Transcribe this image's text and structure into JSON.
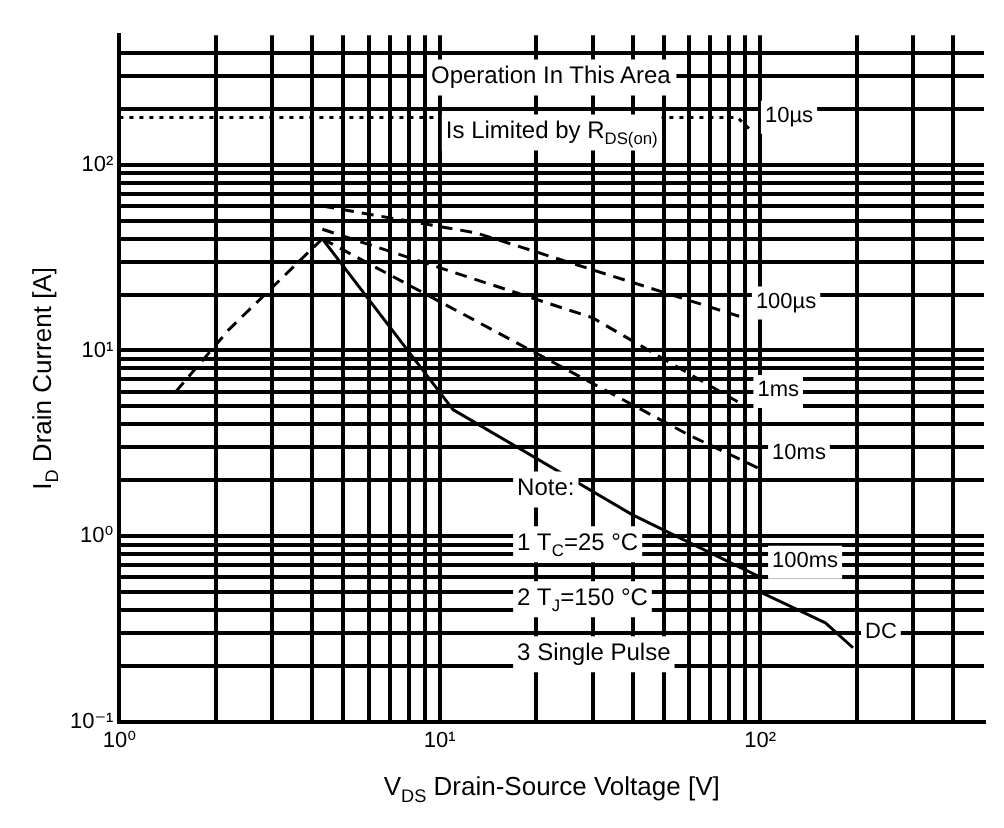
{
  "chart_data": {
    "type": "line",
    "xlabel": "V$_{DS}$ Drain-Source Voltage [V]",
    "ylabel": "I$_{D}$ Drain Current [A]",
    "xlim": [
      1,
      500
    ],
    "ylim": [
      0.1,
      500
    ],
    "xticks": [
      {
        "value": 1,
        "label": "10⁰"
      },
      {
        "value": 2,
        "label": null
      },
      {
        "value": 3,
        "label": null
      },
      {
        "value": 4,
        "label": null
      },
      {
        "value": 5,
        "label": null
      },
      {
        "value": 6,
        "label": null
      },
      {
        "value": 7,
        "label": null
      },
      {
        "value": 8,
        "label": null
      },
      {
        "value": 9,
        "label": null
      },
      {
        "value": 10,
        "label": "10¹"
      },
      {
        "value": 20,
        "label": null
      },
      {
        "value": 30,
        "label": null
      },
      {
        "value": 40,
        "label": null
      },
      {
        "value": 50,
        "label": null
      },
      {
        "value": 60,
        "label": null
      },
      {
        "value": 70,
        "label": null
      },
      {
        "value": 80,
        "label": null
      },
      {
        "value": 90,
        "label": null
      },
      {
        "value": 100,
        "label": "10²"
      },
      {
        "value": 200,
        "label": null
      },
      {
        "value": 300,
        "label": null
      },
      {
        "value": 400,
        "label": null
      }
    ],
    "yticks": [
      {
        "value": 0.1,
        "label": "10⁻¹"
      },
      {
        "value": 0.2,
        "label": null
      },
      {
        "value": 0.3,
        "label": null
      },
      {
        "value": 0.4,
        "label": null
      },
      {
        "value": 0.5,
        "label": null
      },
      {
        "value": 0.6,
        "label": null
      },
      {
        "value": 0.7,
        "label": null
      },
      {
        "value": 0.8,
        "label": null
      },
      {
        "value": 0.9,
        "label": null
      },
      {
        "value": 1,
        "label": "10⁰"
      },
      {
        "value": 2,
        "label": null
      },
      {
        "value": 3,
        "label": null
      },
      {
        "value": 4,
        "label": null
      },
      {
        "value": 5,
        "label": null
      },
      {
        "value": 6,
        "label": null
      },
      {
        "value": 7,
        "label": null
      },
      {
        "value": 8,
        "label": null
      },
      {
        "value": 9,
        "label": null
      },
      {
        "value": 10,
        "label": "10¹"
      },
      {
        "value": 20,
        "label": null
      },
      {
        "value": 30,
        "label": null
      },
      {
        "value": 40,
        "label": null
      },
      {
        "value": 50,
        "label": null
      },
      {
        "value": 60,
        "label": null
      },
      {
        "value": 70,
        "label": null
      },
      {
        "value": 80,
        "label": null
      },
      {
        "value": 90,
        "label": null
      },
      {
        "value": 100,
        "label": "10²"
      },
      {
        "value": 200,
        "label": null
      },
      {
        "value": 300,
        "label": null
      },
      {
        "value": 400,
        "label": null
      }
    ],
    "log": "xy",
    "grid": true,
    "legend": false,
    "marker": "none",
    "series": [
      {
        "color": "#000000",
        "line_style": "dashed",
        "x": [
          1.5,
          2.2,
          4.3
        ],
        "values": [
          6,
          13,
          40
        ]
      },
      {
        "name": "10µs",
        "color": "#000000",
        "line_style": "dotted",
        "x": [
          1,
          85,
          95
        ],
        "values": [
          180,
          180,
          150
        ]
      },
      {
        "name": "100µs",
        "color": "#000000",
        "line_style": "dashed",
        "x": [
          4.3,
          13,
          89
        ],
        "values": [
          60,
          43,
          15
        ]
      },
      {
        "name": "1ms",
        "color": "#000000",
        "line_style": "dashed",
        "x": [
          4.3,
          30,
          90
        ],
        "values": [
          45,
          15,
          5
        ]
      },
      {
        "name": "10ms",
        "color": "#000000",
        "line_style": "dashed",
        "x": [
          4.3,
          60,
          100
        ],
        "values": [
          40,
          3.5,
          2.3
        ]
      },
      {
        "name": "100ms",
        "color": "#000000",
        "line_style": "solid",
        "x": [
          4.3,
          11,
          40,
          100
        ],
        "values": [
          40,
          4.8,
          1.3,
          0.6
        ]
      },
      {
        "name": "DC",
        "color": "#000000",
        "line_style": "solid",
        "x": [
          100,
          160,
          195
        ],
        "values": [
          0.5,
          0.34,
          0.25
        ]
      }
    ],
    "annotations": [
      "Operation In This Area",
      "Is Limited by R$_{DS(on)}$",
      "Note:",
      "1 T$_{C}$=25 °C",
      "2 T$_{J}$=150 °C",
      "3 Single Pulse"
    ]
  }
}
